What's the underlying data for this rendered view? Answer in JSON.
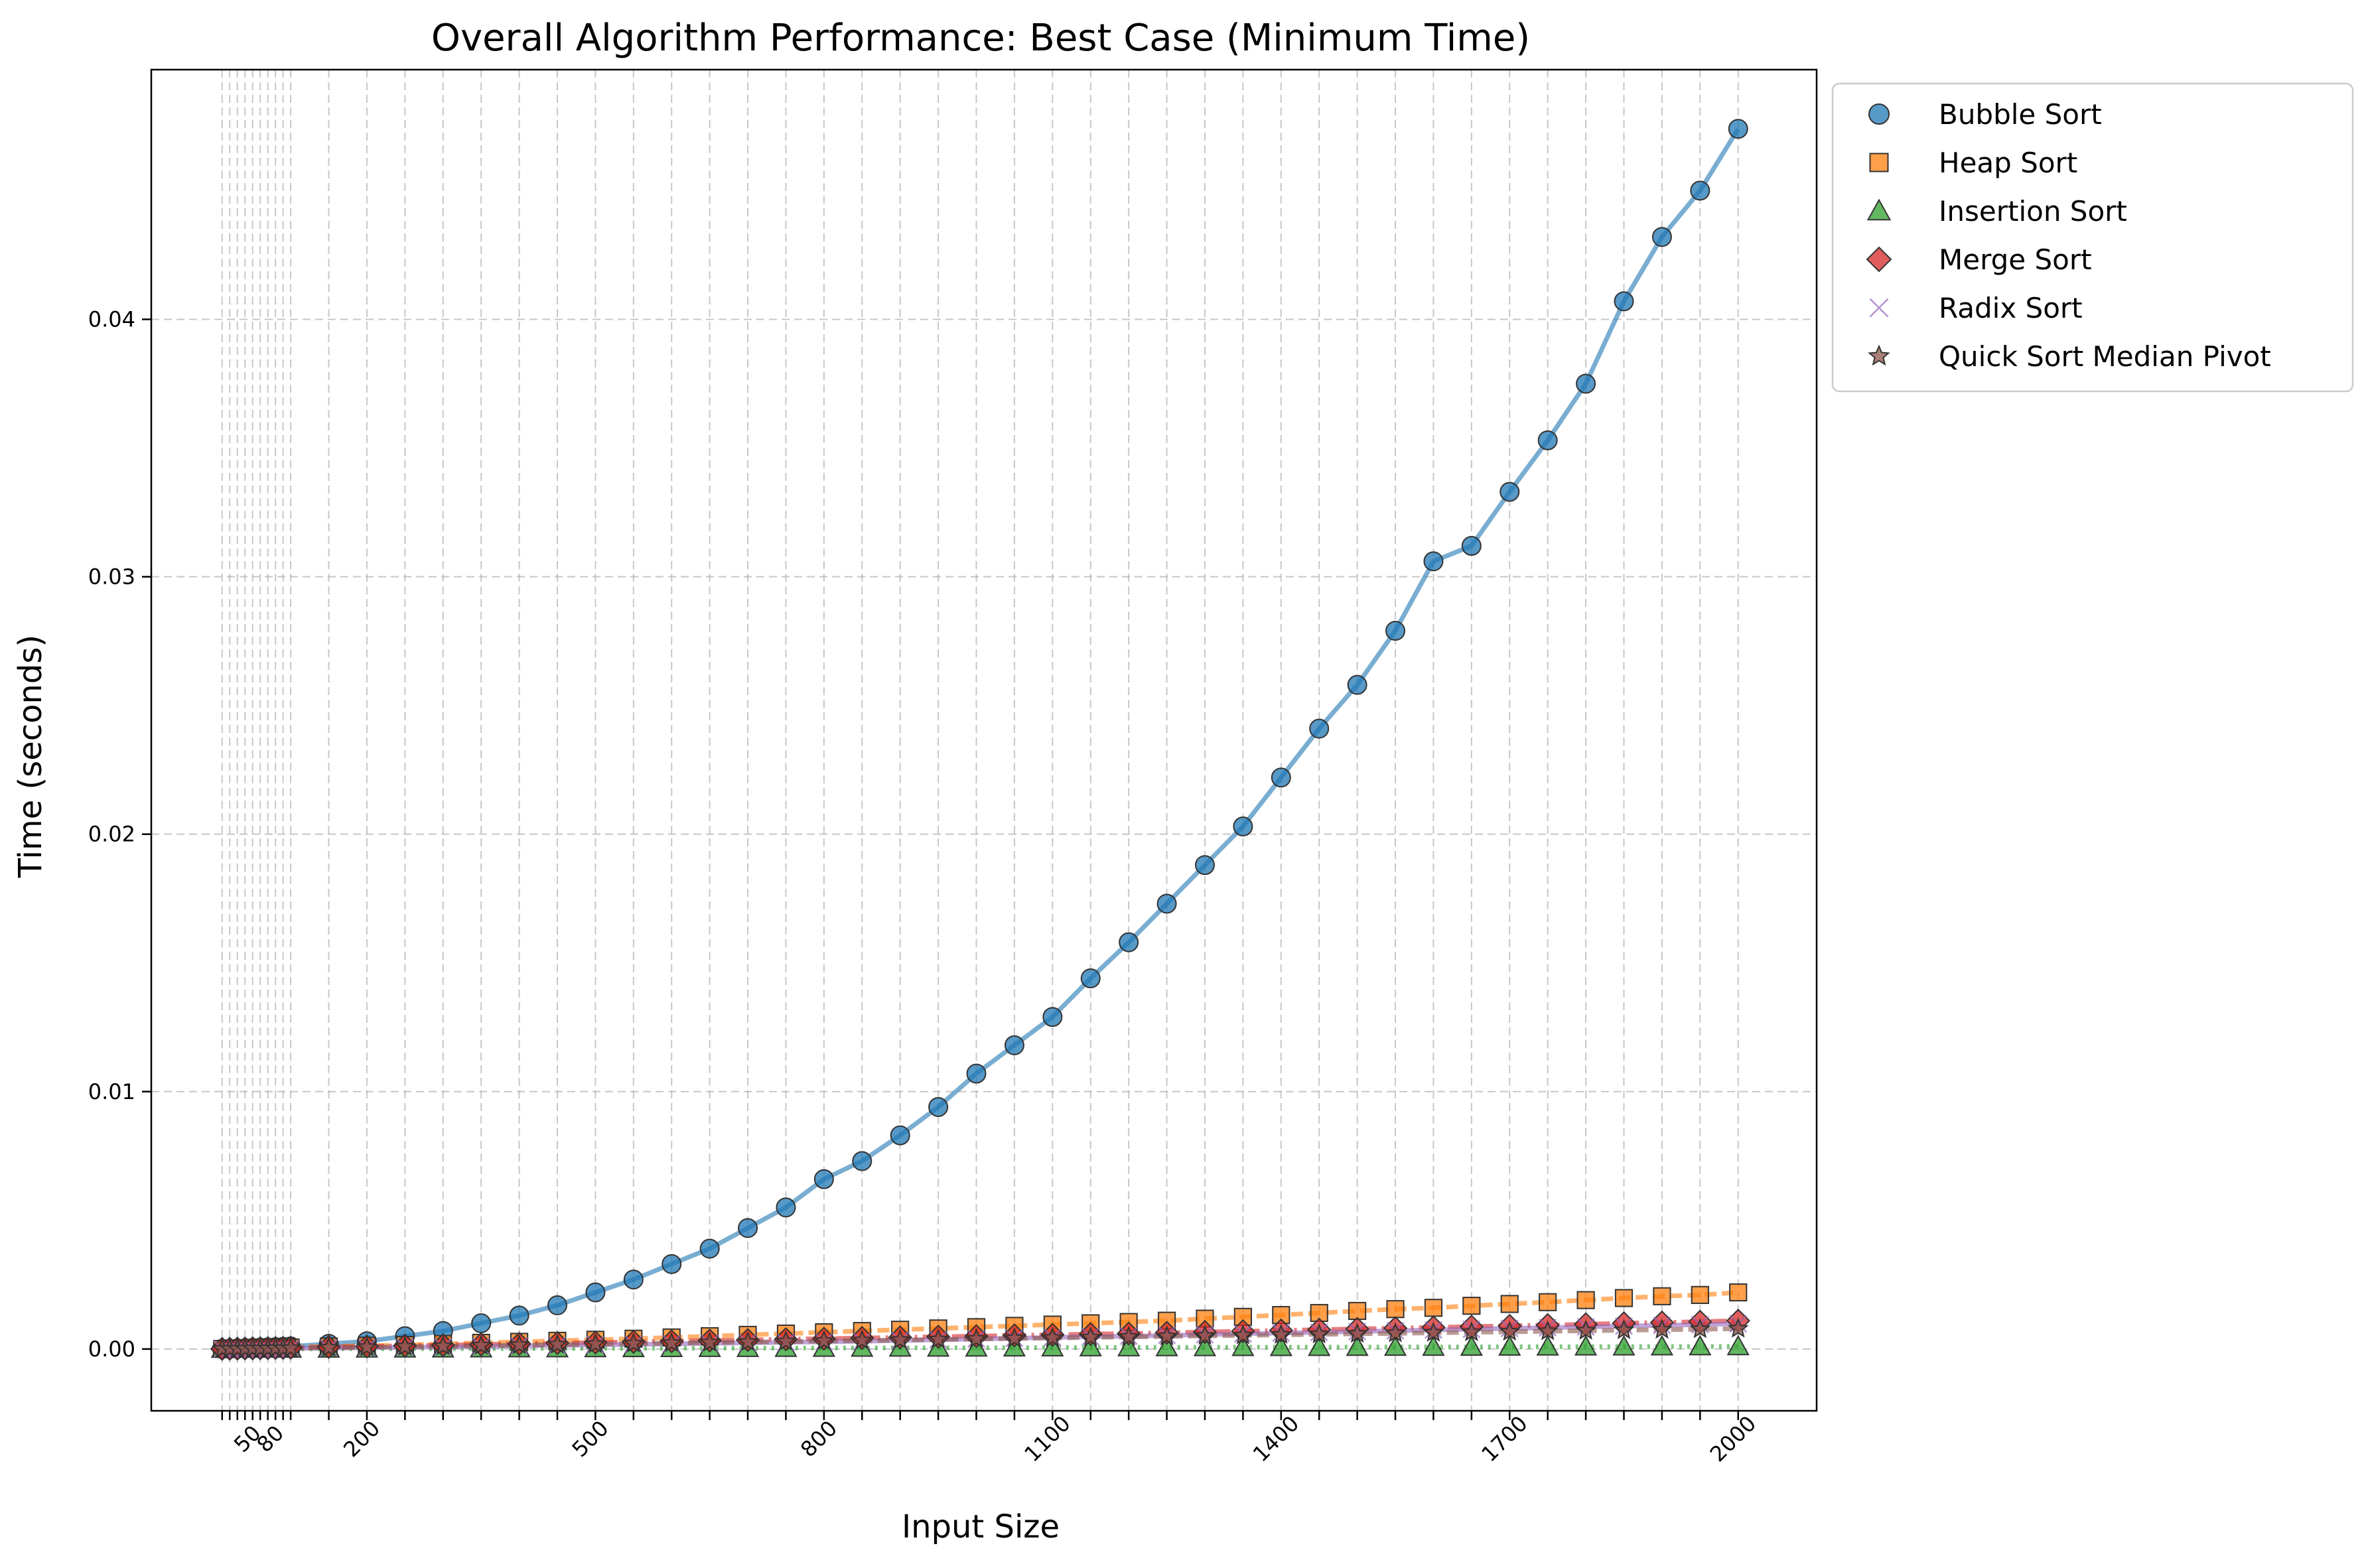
{
  "chart_data": {
    "type": "line",
    "title": "Overall Algorithm Performance: Best Case (Minimum Time)",
    "xlabel": "Input Size",
    "ylabel": "Time (seconds)",
    "xlim": [
      -83,
      2103
    ],
    "ylim": [
      -0.0024,
      0.0497
    ],
    "x_tick_labels": [
      "50",
      "80",
      "200",
      "500",
      "800",
      "1100",
      "1400",
      "1700",
      "2000"
    ],
    "y_tick_labels": [
      "0.00",
      "0.01",
      "0.02",
      "0.03",
      "0.04"
    ],
    "y_ticks": [
      0,
      0.01,
      0.02,
      0.03,
      0.04
    ],
    "x": [
      10,
      20,
      30,
      40,
      50,
      60,
      70,
      80,
      90,
      100,
      150,
      200,
      250,
      300,
      350,
      400,
      450,
      500,
      550,
      600,
      650,
      700,
      750,
      800,
      850,
      900,
      950,
      1000,
      1050,
      1100,
      1150,
      1200,
      1250,
      1300,
      1350,
      1400,
      1450,
      1500,
      1550,
      1600,
      1650,
      1700,
      1750,
      1800,
      1850,
      1900,
      1950,
      2000
    ],
    "grid": true,
    "legend_position": "outside-top-right",
    "series": [
      {
        "name": "Bubble Sort",
        "color": "#1f77b4",
        "marker": "circle",
        "values": [
          5e-06,
          1e-05,
          2e-05,
          3e-05,
          4e-05,
          5e-05,
          6e-05,
          7e-05,
          8e-05,
          0.0001,
          0.0002,
          0.0003,
          0.0005,
          0.0007,
          0.001,
          0.0013,
          0.0017,
          0.0022,
          0.0027,
          0.0033,
          0.0039,
          0.0047,
          0.0055,
          0.0066,
          0.0073,
          0.0083,
          0.0094,
          0.0107,
          0.0118,
          0.0129,
          0.0144,
          0.0158,
          0.0173,
          0.0188,
          0.0203,
          0.0222,
          0.0241,
          0.0258,
          0.0279,
          0.0306,
          0.0312,
          0.0333,
          0.0353,
          0.0375,
          0.0407,
          0.0432,
          0.045,
          0.0474
        ]
      },
      {
        "name": "Heap Sort",
        "color": "#ff7f0e",
        "marker": "square",
        "values": [
          5e-06,
          1e-05,
          1.5e-05,
          2e-05,
          2.5e-05,
          3e-05,
          3.5e-05,
          4e-05,
          5e-05,
          6e-05,
          0.0001,
          0.00013,
          0.00016,
          0.0002,
          0.00024,
          0.00028,
          0.00032,
          0.00036,
          0.0004,
          0.00045,
          0.0005,
          0.00055,
          0.0006,
          0.00065,
          0.0007,
          0.00075,
          0.0008,
          0.00085,
          0.0009,
          0.00095,
          0.001,
          0.00105,
          0.0011,
          0.00118,
          0.00125,
          0.00132,
          0.0014,
          0.00148,
          0.00155,
          0.0016,
          0.00168,
          0.00175,
          0.00182,
          0.0019,
          0.00198,
          0.00205,
          0.0021,
          0.0022
        ]
      },
      {
        "name": "Insertion Sort",
        "color": "#2ca02c",
        "marker": "triangle",
        "values": [
          1e-06,
          1e-06,
          2e-06,
          2e-06,
          3e-06,
          3e-06,
          4e-06,
          4e-06,
          5e-06,
          5e-06,
          8e-06,
          1e-05,
          1.2e-05,
          1.5e-05,
          1.8e-05,
          2e-05,
          2.2e-05,
          2.5e-05,
          2.8e-05,
          3e-05,
          3.2e-05,
          3.5e-05,
          3.8e-05,
          4e-05,
          4.2e-05,
          4.5e-05,
          4.8e-05,
          5e-05,
          5.2e-05,
          5.5e-05,
          5.8e-05,
          6e-05,
          6.2e-05,
          6.5e-05,
          6.8e-05,
          7e-05,
          7.2e-05,
          7.5e-05,
          7.8e-05,
          8e-05,
          8.2e-05,
          8.5e-05,
          8.8e-05,
          9e-05,
          9.2e-05,
          9.5e-05,
          9.8e-05,
          0.0001
        ]
      },
      {
        "name": "Merge Sort",
        "color": "#d62728",
        "marker": "diamond",
        "values": [
          5e-06,
          1e-05,
          1.5e-05,
          2e-05,
          2.5e-05,
          3e-05,
          3.5e-05,
          4e-05,
          4.5e-05,
          5e-05,
          8e-05,
          0.0001,
          0.00013,
          0.00015,
          0.00018,
          0.0002,
          0.00023,
          0.00025,
          0.00028,
          0.0003,
          0.00033,
          0.00035,
          0.00038,
          0.0004,
          0.00043,
          0.00045,
          0.00048,
          0.0005,
          0.00053,
          0.00055,
          0.00058,
          0.0006,
          0.00063,
          0.00066,
          0.00069,
          0.00072,
          0.00075,
          0.00078,
          0.00081,
          0.00084,
          0.00087,
          0.0009,
          0.00093,
          0.00096,
          0.001,
          0.00103,
          0.00106,
          0.0011
        ]
      },
      {
        "name": "Radix Sort",
        "color": "#9467bd",
        "marker": "x",
        "values": [
          5e-06,
          8e-06,
          1e-05,
          1.2e-05,
          1.5e-05,
          1.8e-05,
          2e-05,
          2.2e-05,
          2.5e-05,
          2.8e-05,
          4e-05,
          5e-05,
          7e-05,
          8e-05,
          0.0001,
          0.00012,
          0.00014,
          0.00016,
          0.00018,
          0.0002,
          0.00022,
          0.00024,
          0.00026,
          0.00028,
          0.0003,
          0.00033,
          0.00036,
          0.00039,
          0.00042,
          0.00045,
          0.00048,
          0.0005,
          0.00053,
          0.00056,
          0.00059,
          0.00062,
          0.00065,
          0.00068,
          0.00071,
          0.00074,
          0.00077,
          0.0008,
          0.00083,
          0.00086,
          0.00089,
          0.00092,
          0.00095,
          0.00098
        ]
      },
      {
        "name": "Quick Sort Median Pivot",
        "color": "#8c564b",
        "marker": "star",
        "values": [
          3e-06,
          6e-06,
          9e-06,
          1.2e-05,
          1.5e-05,
          1.8e-05,
          2.1e-05,
          2.4e-05,
          2.7e-05,
          3e-05,
          5e-05,
          7e-05,
          9e-05,
          0.00011,
          0.00013,
          0.00015,
          0.00017,
          0.00019,
          0.00021,
          0.00023,
          0.00025,
          0.00027,
          0.00029,
          0.00031,
          0.00033,
          0.00035,
          0.00037,
          0.00039,
          0.00041,
          0.00043,
          0.00045,
          0.00047,
          0.00049,
          0.00051,
          0.00053,
          0.00055,
          0.00057,
          0.00059,
          0.00061,
          0.00063,
          0.00065,
          0.00067,
          0.00069,
          0.00071,
          0.00073,
          0.00075,
          0.00077,
          0.00079
        ]
      }
    ]
  }
}
